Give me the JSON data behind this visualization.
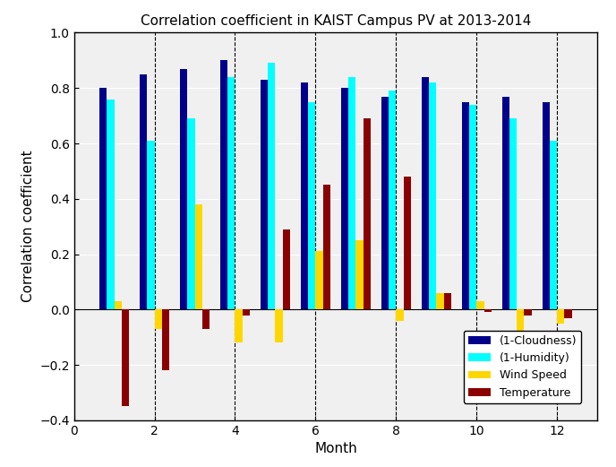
{
  "title": "Correlation coefficient in KAIST Campus PV at 2013-2014",
  "xlabel": "Month",
  "ylabel": "Correlation coefficient",
  "xlim": [
    0,
    13
  ],
  "ylim": [
    -0.4,
    1.0
  ],
  "yticks": [
    -0.4,
    -0.2,
    0.0,
    0.2,
    0.4,
    0.6,
    0.8,
    1.0
  ],
  "xticks": [
    0,
    2,
    4,
    6,
    8,
    10,
    12
  ],
  "months": [
    1,
    2,
    3,
    4,
    5,
    6,
    7,
    8,
    9,
    10,
    11,
    12
  ],
  "cloudness": [
    0.8,
    0.85,
    0.87,
    0.9,
    0.83,
    0.82,
    0.8,
    0.77,
    0.84,
    0.75,
    0.77,
    0.75
  ],
  "humidity": [
    0.76,
    0.61,
    0.69,
    0.84,
    0.89,
    0.75,
    0.84,
    0.79,
    0.82,
    0.74,
    0.69,
    0.61
  ],
  "windspeed": [
    0.03,
    -0.07,
    0.38,
    -0.12,
    -0.12,
    0.21,
    0.25,
    -0.04,
    0.06,
    0.03,
    -0.21,
    -0.05
  ],
  "temperature": [
    -0.35,
    -0.22,
    -0.07,
    -0.02,
    0.29,
    0.45,
    0.69,
    0.48,
    0.06,
    -0.01,
    -0.02,
    -0.03
  ],
  "color_cloudness": "#00008B",
  "color_humidity": "#00FFFF",
  "color_windspeed": "#FFD700",
  "color_temperature": "#8B0000",
  "legend_labels": [
    "(1-Cloudness)",
    "(1-Humidity)",
    "Wind Speed",
    "Temperature"
  ],
  "bar_width": 0.18,
  "axes_facecolor": "#f0f0f0",
  "background_color": "#ffffff",
  "title_fontsize": 11,
  "label_fontsize": 11,
  "tick_fontsize": 10
}
